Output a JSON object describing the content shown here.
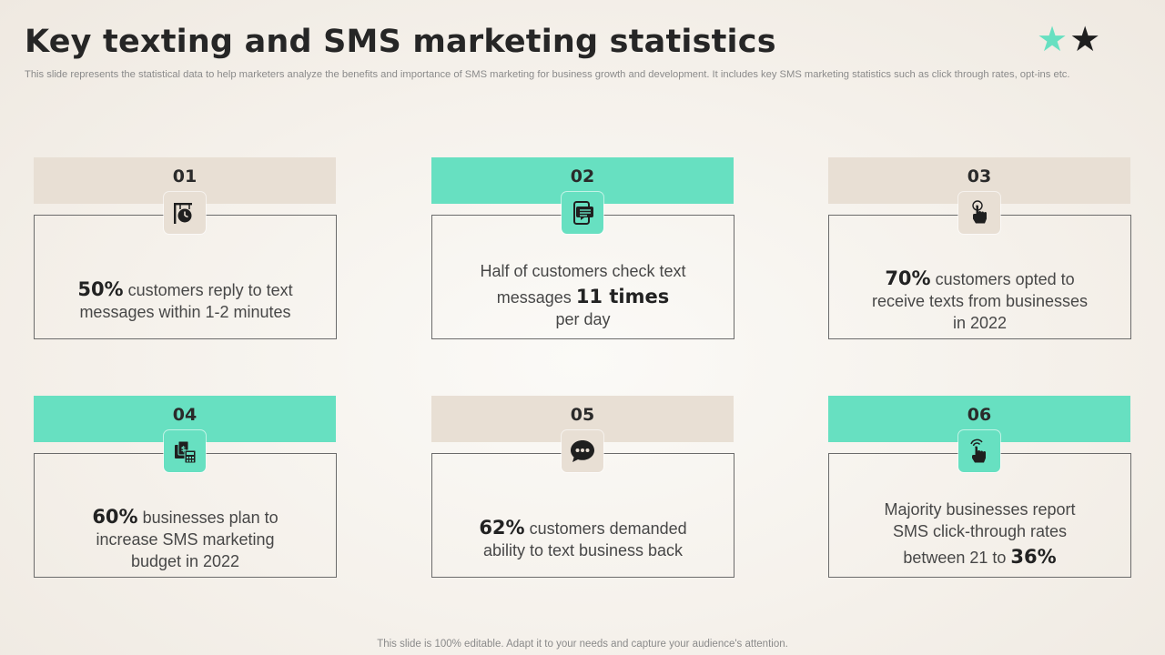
{
  "title": "Key texting and SMS marketing statistics",
  "subtitle": "This slide represents the statistical data to help marketers analyze the benefits and importance of SMS  marketing for business growth and development. It includes key SMS  marketing statistics such as click through rates, opt-ins etc.",
  "footer": "This slide is 100% editable. Adapt it to your needs and capture your audience's attention.",
  "colors": {
    "teal": "#67e0c1",
    "tan": "#e8dfd4",
    "dark": "#1f1f1f"
  },
  "cards": [
    {
      "number": "01",
      "color": "tan",
      "icon": "clock-sign-icon",
      "highlight": "50%",
      "line1_rest": " customers reply to text",
      "line2": "messages within  1-2 minutes"
    },
    {
      "number": "02",
      "color": "teal",
      "icon": "phone-message-icon",
      "line1": "Half of customers check text",
      "line2_pre": "messages ",
      "highlight": "11 times",
      "line3": "per day"
    },
    {
      "number": "03",
      "color": "tan",
      "icon": "touch-hand-icon",
      "highlight": "70%",
      "line1_rest": " customers opted to",
      "line2": "receive texts from businesses",
      "line3": "in 2022"
    },
    {
      "number": "04",
      "color": "teal",
      "icon": "budget-calculator-icon",
      "highlight": "60%",
      "line1_rest": " businesses plan to",
      "line2": "increase SMS marketing",
      "line3": "budget in 2022"
    },
    {
      "number": "05",
      "color": "tan",
      "icon": "chat-bubble-icon",
      "highlight": "62%",
      "line1_rest": " customers demanded",
      "line2": "ability to text business back"
    },
    {
      "number": "06",
      "color": "teal",
      "icon": "click-hand-icon",
      "line1": "Majority businesses report",
      "line2": "SMS click-through rates",
      "line3_pre": "between 21 to ",
      "highlight": "36%"
    }
  ]
}
